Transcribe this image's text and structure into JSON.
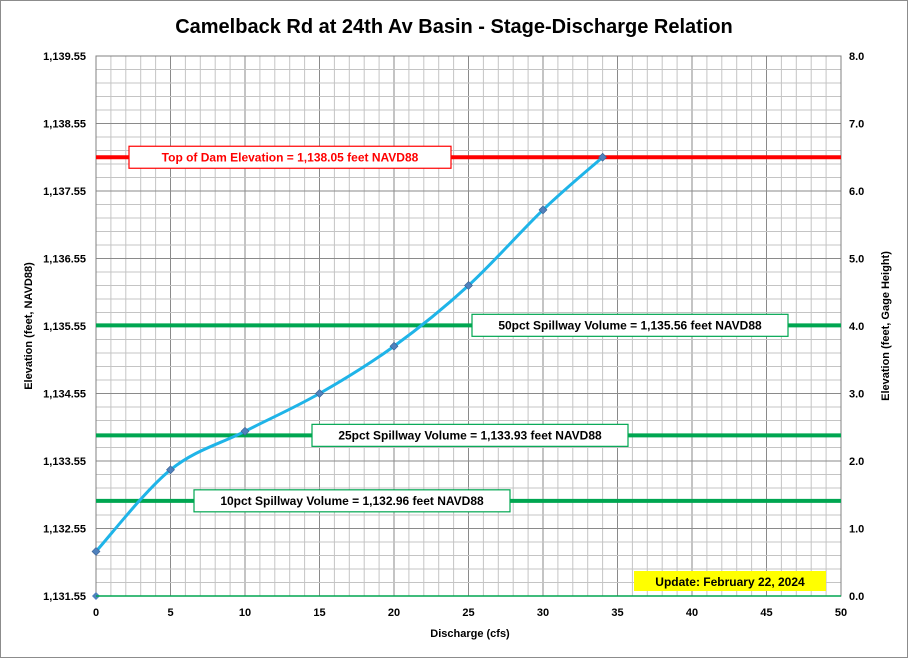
{
  "chart_data": {
    "type": "line",
    "title": "Camelback Rd at 24th Av Basin - Stage-Discharge Relation",
    "xlabel": "Discharge (cfs)",
    "ylabel": "Elevation (feet, NAVD88)",
    "y2label": "Elevation (feet, Gage Height)",
    "xlim": [
      0,
      50
    ],
    "ylim": [
      1131.55,
      1139.55
    ],
    "y2lim": [
      0,
      8
    ],
    "x_ticks": [
      "0",
      "5",
      "10",
      "15",
      "20",
      "25",
      "30",
      "35",
      "40",
      "45",
      "50"
    ],
    "y_ticks": [
      "1,131.55",
      "1,132.55",
      "1,133.55",
      "1,134.55",
      "1,135.55",
      "1,136.55",
      "1,137.55",
      "1,138.55",
      "1,139.55"
    ],
    "y2_ticks": [
      "0.0",
      "1.0",
      "2.0",
      "3.0",
      "4.0",
      "5.0",
      "6.0",
      "7.0",
      "8.0"
    ],
    "grid": true,
    "series": [
      {
        "color": "#1fb4e8",
        "marker_color": "#4f81bd",
        "x": [
          0,
          5,
          10,
          15,
          20,
          25,
          30,
          34
        ],
        "y": [
          1132.21,
          1133.42,
          1133.99,
          1134.55,
          1135.25,
          1136.15,
          1137.27,
          1138.05
        ]
      }
    ],
    "reference_lines": [
      {
        "label": "Top of Dam Elevation = 1,138.05 feet NAVD88",
        "y": 1138.05,
        "color": "#ff0000"
      },
      {
        "label": "50pct Spillway Volume = 1,135.56 feet NAVD88",
        "y": 1135.56,
        "color": "#00a651"
      },
      {
        "label": "25pct Spillway Volume = 1,133.93 feet NAVD88",
        "y": 1133.93,
        "color": "#00a651"
      },
      {
        "label": "10pct Spillway Volume = 1,132.96 feet NAVD88",
        "y": 1132.96,
        "color": "#00a651"
      }
    ],
    "annotation": {
      "text": "Update: February 22, 2024",
      "background": "#ffff00"
    }
  }
}
